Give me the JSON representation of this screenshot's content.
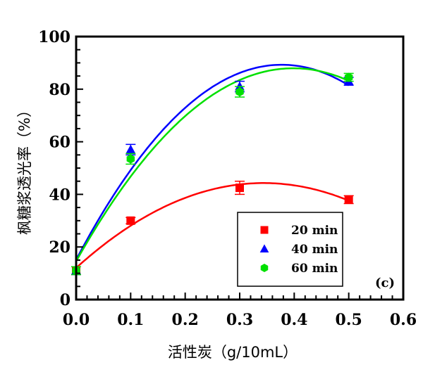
{
  "chart_data": {
    "type": "scatter",
    "title": "",
    "xlabel": "活性炭（g/10mL）",
    "ylabel": "枫糖浆透光率（%）",
    "xlim": [
      0.0,
      0.6
    ],
    "ylim": [
      0,
      100
    ],
    "xticks": [
      "0.0",
      "0.1",
      "0.2",
      "0.3",
      "0.4",
      "0.5",
      "0.6"
    ],
    "yticks": [
      "0",
      "20",
      "40",
      "60",
      "80",
      "100"
    ],
    "grid": false,
    "legend_position": "bottom-right",
    "annotation": "(c)",
    "fit": "quadratic",
    "series": [
      {
        "name": "20 min",
        "marker": "square",
        "color": "#ff0000",
        "x": [
          0.0,
          0.1,
          0.3,
          0.5
        ],
        "y": [
          11,
          30,
          42.5,
          38
        ],
        "err": [
          1.5,
          1.2,
          2.5,
          1.5
        ]
      },
      {
        "name": "40 min",
        "marker": "triangle",
        "color": "#0000ff",
        "x": [
          0.0,
          0.1,
          0.3,
          0.5
        ],
        "y": [
          11,
          57,
          81,
          83
        ],
        "err": [
          1.5,
          2,
          2,
          1.5
        ]
      },
      {
        "name": "60 min",
        "marker": "hexagon",
        "color": "#00e000",
        "x": [
          0.0,
          0.1,
          0.3,
          0.5
        ],
        "y": [
          11,
          53.5,
          79,
          84.5
        ],
        "err": [
          1.5,
          2,
          2,
          1.5
        ]
      }
    ]
  }
}
